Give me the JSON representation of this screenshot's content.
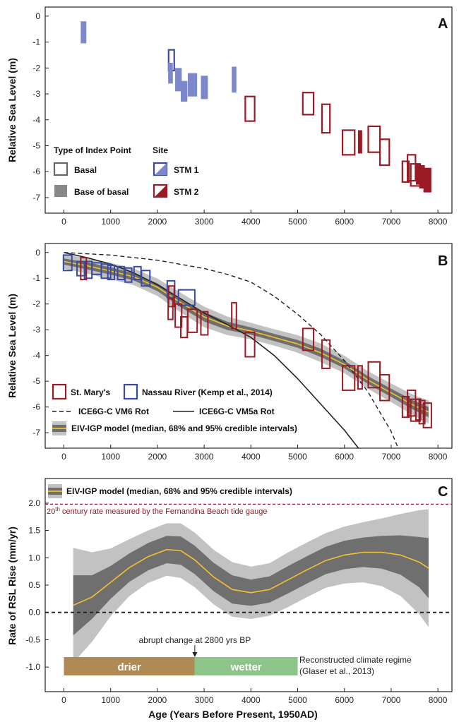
{
  "figure": {
    "x_axis_label": "Age (Years Before Present, 1950AD)"
  },
  "chart_data": [
    {
      "panel": "A",
      "type": "scatter",
      "ylabel": "Relative Sea Level (m)",
      "xlim": [
        -400,
        8300
      ],
      "ylim": [
        -7.6,
        0.35
      ],
      "xticks": [
        0,
        1000,
        2000,
        3000,
        4000,
        5000,
        6000,
        7000,
        8000
      ],
      "yticks": [
        0,
        -1,
        -2,
        -3,
        -4,
        -5,
        -6,
        -7
      ],
      "legend": {
        "type_title": "Type of Index Point",
        "site_title": "Site",
        "basal": "Basal",
        "base_of_basal": "Base of basal",
        "stm1": "STM 1",
        "stm2": "STM 2"
      },
      "index_points": [
        {
          "site": "STM 1",
          "type": "base of basal",
          "age": [
            360,
            480
          ],
          "rsl": [
            -0.2,
            -1.05
          ]
        },
        {
          "site": "STM 1",
          "type": "basal",
          "age": [
            2240,
            2360
          ],
          "rsl": [
            -1.3,
            -2.1
          ]
        },
        {
          "site": "STM 1",
          "type": "base of basal",
          "age": [
            2230,
            2330
          ],
          "rsl": [
            -1.8,
            -2.6
          ]
        },
        {
          "site": "STM 1",
          "type": "base of basal",
          "age": [
            2380,
            2520
          ],
          "rsl": [
            -2.0,
            -2.9
          ]
        },
        {
          "site": "STM 1",
          "type": "base of basal",
          "age": [
            2500,
            2640
          ],
          "rsl": [
            -2.5,
            -3.3
          ]
        },
        {
          "site": "STM 1",
          "type": "base of basal",
          "age": [
            2650,
            2850
          ],
          "rsl": [
            -2.2,
            -3.1
          ]
        },
        {
          "site": "STM 1",
          "type": "base of basal",
          "age": [
            2930,
            3080
          ],
          "rsl": [
            -2.3,
            -3.2
          ]
        },
        {
          "site": "STM 1",
          "type": "base of basal",
          "age": [
            3590,
            3690
          ],
          "rsl": [
            -1.95,
            -2.95
          ]
        },
        {
          "site": "STM 2",
          "type": "basal",
          "age": [
            3880,
            4080
          ],
          "rsl": [
            -3.1,
            -4.05
          ]
        },
        {
          "site": "STM 2",
          "type": "basal",
          "age": [
            5110,
            5340
          ],
          "rsl": [
            -2.95,
            -3.8
          ]
        },
        {
          "site": "STM 2",
          "type": "basal",
          "age": [
            5520,
            5690
          ],
          "rsl": [
            -3.4,
            -4.5
          ]
        },
        {
          "site": "STM 2",
          "type": "basal",
          "age": [
            5960,
            6220
          ],
          "rsl": [
            -4.4,
            -5.35
          ]
        },
        {
          "site": "STM 2",
          "type": "base of basal",
          "age": [
            6290,
            6380
          ],
          "rsl": [
            -4.4,
            -5.3
          ]
        },
        {
          "site": "STM 2",
          "type": "basal",
          "age": [
            6510,
            6760
          ],
          "rsl": [
            -4.25,
            -5.25
          ]
        },
        {
          "site": "STM 2",
          "type": "basal",
          "age": [
            6760,
            6960
          ],
          "rsl": [
            -4.75,
            -5.75
          ]
        },
        {
          "site": "STM 2",
          "type": "basal",
          "age": [
            7240,
            7380
          ],
          "rsl": [
            -5.6,
            -6.4
          ]
        },
        {
          "site": "STM 2",
          "type": "basal",
          "age": [
            7350,
            7520
          ],
          "rsl": [
            -5.35,
            -6.35
          ]
        },
        {
          "site": "STM 2",
          "type": "basal",
          "age": [
            7420,
            7620
          ],
          "rsl": [
            -5.7,
            -6.55
          ]
        },
        {
          "site": "STM 2",
          "type": "base of basal",
          "age": [
            7530,
            7630
          ],
          "rsl": [
            -5.7,
            -6.5
          ]
        },
        {
          "site": "STM 2",
          "type": "base of basal",
          "age": [
            7600,
            7720
          ],
          "rsl": [
            -5.75,
            -6.65
          ]
        },
        {
          "site": "STM 2",
          "type": "base of basal",
          "age": [
            7690,
            7860
          ],
          "rsl": [
            -5.85,
            -6.8
          ]
        }
      ]
    },
    {
      "panel": "B",
      "type": "line",
      "ylabel": "Relative Sea Level (m)",
      "xlim": [
        -400,
        8300
      ],
      "ylim": [
        -7.6,
        0.35
      ],
      "xticks": [
        0,
        1000,
        2000,
        3000,
        4000,
        5000,
        6000,
        7000,
        8000
      ],
      "yticks": [
        0,
        -1,
        -2,
        -3,
        -4,
        -5,
        -6,
        -7
      ],
      "legend": {
        "st_marys": "St. Mary's",
        "nassau": "Nassau River (Kemp et al., 2014)",
        "vm6": "ICE6G-C VM6 Rot",
        "vm5a": "ICE6G-C VM5a Rot",
        "model": "EIV-IGP model (median, 68% and 95% credible intervals)"
      },
      "model_x": [
        0,
        500,
        1000,
        1500,
        2000,
        2500,
        3000,
        3500,
        4000,
        4500,
        5000,
        5500,
        6000,
        6500,
        7000,
        7500,
        7800
      ],
      "model_median": [
        -0.35,
        -0.52,
        -0.72,
        -0.95,
        -1.35,
        -1.95,
        -2.5,
        -2.85,
        -3.05,
        -3.3,
        -3.55,
        -3.9,
        -4.35,
        -4.95,
        -5.45,
        -5.95,
        -6.2
      ],
      "model_68": [
        0.12,
        0.14,
        0.14,
        0.14,
        0.15,
        0.17,
        0.18,
        0.16,
        0.14,
        0.14,
        0.15,
        0.16,
        0.15,
        0.15,
        0.16,
        0.18,
        0.2
      ],
      "model_95": [
        0.28,
        0.3,
        0.32,
        0.32,
        0.34,
        0.38,
        0.4,
        0.36,
        0.32,
        0.32,
        0.34,
        0.36,
        0.34,
        0.34,
        0.36,
        0.4,
        0.45
      ],
      "vm6_x": [
        0,
        1000,
        2000,
        3000,
        3500,
        4000,
        4500,
        5000,
        5500,
        6000,
        6500,
        7000,
        7150
      ],
      "vm6_y": [
        0,
        -0.1,
        -0.3,
        -0.62,
        -0.85,
        -1.15,
        -1.7,
        -2.4,
        -3.2,
        -4.2,
        -5.4,
        -6.95,
        -7.6
      ],
      "vm5a_x": [
        0,
        500,
        1000,
        1500,
        2000,
        2500,
        3000,
        3500,
        4000,
        4500,
        5000,
        5500,
        6000,
        6300
      ],
      "vm5a_y": [
        0,
        -0.2,
        -0.45,
        -0.8,
        -1.25,
        -1.8,
        -2.35,
        -2.8,
        -3.3,
        -4.0,
        -4.9,
        -5.9,
        -6.9,
        -7.6
      ],
      "nassau_points": [
        {
          "age": [
            -10,
            170
          ],
          "rsl": [
            -0.1,
            -0.7
          ]
        },
        {
          "age": [
            280,
            460
          ],
          "rsl": [
            -0.35,
            -0.9
          ]
        },
        {
          "age": [
            440,
            600
          ],
          "rsl": [
            -0.35,
            -1.0
          ]
        },
        {
          "age": [
            600,
            800
          ],
          "rsl": [
            -0.4,
            -0.85
          ]
        },
        {
          "age": [
            800,
            1000
          ],
          "rsl": [
            -0.45,
            -1.0
          ]
        },
        {
          "age": [
            940,
            1080
          ],
          "rsl": [
            -0.5,
            -1.05
          ]
        },
        {
          "age": [
            1150,
            1290
          ],
          "rsl": [
            -0.55,
            -1.05
          ]
        },
        {
          "age": [
            1310,
            1450
          ],
          "rsl": [
            -0.6,
            -1.15
          ]
        },
        {
          "age": [
            1500,
            1650
          ],
          "rsl": [
            -0.55,
            -1.05
          ]
        },
        {
          "age": [
            1660,
            1840
          ],
          "rsl": [
            -0.7,
            -1.3
          ]
        },
        {
          "age": [
            2210,
            2370
          ],
          "rsl": [
            -1.1,
            -1.75
          ]
        },
        {
          "age": [
            2450,
            2800
          ],
          "rsl": [
            -1.45,
            -2.05
          ]
        }
      ],
      "st_marys_points": [
        {
          "age": [
            360,
            480
          ],
          "rsl": [
            -0.2,
            -1.05
          ]
        },
        {
          "age": [
            2240,
            2360
          ],
          "rsl": [
            -1.3,
            -2.1
          ]
        },
        {
          "age": [
            2230,
            2330
          ],
          "rsl": [
            -1.8,
            -2.6
          ]
        },
        {
          "age": [
            2380,
            2520
          ],
          "rsl": [
            -2.0,
            -2.9
          ]
        },
        {
          "age": [
            2500,
            2640
          ],
          "rsl": [
            -2.5,
            -3.3
          ]
        },
        {
          "age": [
            2650,
            2850
          ],
          "rsl": [
            -2.2,
            -3.1
          ]
        },
        {
          "age": [
            2930,
            3080
          ],
          "rsl": [
            -2.3,
            -3.2
          ]
        },
        {
          "age": [
            3590,
            3690
          ],
          "rsl": [
            -1.95,
            -2.95
          ]
        },
        {
          "age": [
            3880,
            4080
          ],
          "rsl": [
            -3.1,
            -4.05
          ]
        },
        {
          "age": [
            5110,
            5340
          ],
          "rsl": [
            -2.95,
            -3.8
          ]
        },
        {
          "age": [
            5520,
            5690
          ],
          "rsl": [
            -3.4,
            -4.5
          ]
        },
        {
          "age": [
            5960,
            6220
          ],
          "rsl": [
            -4.4,
            -5.35
          ]
        },
        {
          "age": [
            6290,
            6380
          ],
          "rsl": [
            -4.4,
            -5.3
          ]
        },
        {
          "age": [
            6510,
            6760
          ],
          "rsl": [
            -4.25,
            -5.25
          ]
        },
        {
          "age": [
            6760,
            6960
          ],
          "rsl": [
            -4.75,
            -5.75
          ]
        },
        {
          "age": [
            7240,
            7380
          ],
          "rsl": [
            -5.6,
            -6.4
          ]
        },
        {
          "age": [
            7350,
            7520
          ],
          "rsl": [
            -5.35,
            -6.35
          ]
        },
        {
          "age": [
            7420,
            7620
          ],
          "rsl": [
            -5.7,
            -6.55
          ]
        },
        {
          "age": [
            7530,
            7630
          ],
          "rsl": [
            -5.7,
            -6.5
          ]
        },
        {
          "age": [
            7600,
            7720
          ],
          "rsl": [
            -5.75,
            -6.65
          ]
        },
        {
          "age": [
            7690,
            7860
          ],
          "rsl": [
            -5.85,
            -6.8
          ]
        }
      ]
    },
    {
      "panel": "C",
      "type": "line",
      "ylabel": "Rate of RSL Rise (mm/yr)",
      "xlim": [
        -400,
        8300
      ],
      "ylim": [
        -1.45,
        2.45
      ],
      "xticks": [
        0,
        1000,
        2000,
        3000,
        4000,
        5000,
        6000,
        7000,
        8000
      ],
      "yticks": [
        2.0,
        1.5,
        1.0,
        0.5,
        0.0,
        -0.5,
        -1.0
      ],
      "ytick_labels": [
        "2.0",
        "1.5",
        "1.0",
        "0.5",
        "0.0",
        "-0.5",
        "-1.0"
      ],
      "legend_model": "EIV-IGP model (median, 68% and 95% credible intervals)",
      "reference_rate": 1.98,
      "reference_label_sup": "20",
      "reference_label_th": "th",
      "reference_label_rest": " century rate measured by the Fernandina Beach tide gauge",
      "abrupt_change_age": 2800,
      "abrupt_change_label": "abrupt change at 2800 yrs BP",
      "regimes": [
        {
          "label": "drier",
          "start": 0,
          "end": 2800,
          "color": "#b08a55"
        },
        {
          "label": "wetter",
          "start": 2800,
          "end": 5000,
          "color": "#8dc48a"
        }
      ],
      "regime_note_line1": "Reconstructed climate regime",
      "regime_note_line2": "(Glaser et al., 2013)",
      "rate_x": [
        200,
        600,
        1000,
        1400,
        1800,
        2200,
        2500,
        2800,
        3200,
        3600,
        4000,
        4400,
        4800,
        5200,
        5600,
        6000,
        6400,
        6800,
        7200,
        7600,
        7800
      ],
      "rate_median": [
        0.13,
        0.28,
        0.55,
        0.82,
        1.02,
        1.15,
        1.13,
        0.96,
        0.65,
        0.42,
        0.36,
        0.42,
        0.6,
        0.78,
        0.95,
        1.05,
        1.1,
        1.1,
        1.05,
        0.92,
        0.81
      ],
      "rate_68": [
        0.55,
        0.4,
        0.3,
        0.26,
        0.25,
        0.25,
        0.26,
        0.26,
        0.26,
        0.26,
        0.24,
        0.24,
        0.25,
        0.25,
        0.25,
        0.26,
        0.27,
        0.3,
        0.36,
        0.46,
        0.55
      ],
      "rate_95": [
        1.05,
        0.82,
        0.62,
        0.52,
        0.48,
        0.48,
        0.5,
        0.5,
        0.5,
        0.5,
        0.48,
        0.48,
        0.5,
        0.5,
        0.5,
        0.52,
        0.55,
        0.62,
        0.75,
        0.95,
        1.08
      ]
    }
  ],
  "colors": {
    "stm1_fill": "#7b88c9",
    "stm1_edge": "#3a4aa3",
    "stm2_edge": "#9b1b25",
    "stm2_fill": "#9b1b25",
    "band95": "#c2c2c2",
    "band68": "#6f6f6f",
    "median": "#f2c12e",
    "ref_line": "#9b1b3a"
  }
}
